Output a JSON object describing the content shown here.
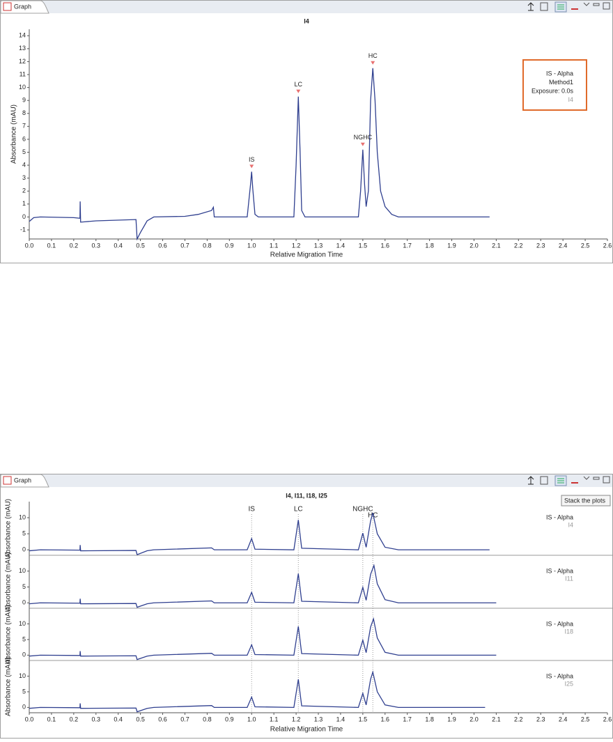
{
  "tabs": [
    {
      "label": "Graph"
    },
    {
      "label": "Graph"
    }
  ],
  "tooltip": "Stack the plots",
  "chart_data": [
    {
      "type": "line",
      "title": "I4",
      "xlabel": "Relative Migration Time",
      "ylabel": "Absorbance (mAU)",
      "xlim": [
        0,
        2.6
      ],
      "ylim": [
        -1.7,
        14.5
      ],
      "xticks": [
        {
          "value": 0,
          "label": "0.0"
        },
        0.1,
        0.2,
        0.3,
        0.4,
        0.5,
        0.6,
        0.7,
        0.8,
        0.9,
        {
          "value": 1,
          "label": "1.0"
        },
        1.1,
        1.2,
        1.3,
        1.4,
        1.5,
        1.6,
        1.7,
        1.8,
        1.9,
        {
          "value": 2,
          "label": "2.0"
        },
        2.1,
        2.2,
        2.3,
        2.4,
        2.5,
        2.6
      ],
      "yticks": [
        -1,
        0,
        1,
        2,
        3,
        4,
        5,
        6,
        7,
        8,
        9,
        10,
        11,
        12,
        13,
        14
      ],
      "legend_lines": [
        "IS - Alpha",
        "Method1",
        "Exposure: 0.0s"
      ],
      "annotations": [
        {
          "text": "IS",
          "x": 1.0,
          "y": 3.5
        },
        {
          "text": "LC",
          "x": 1.21,
          "y": 9.3
        },
        {
          "text": "NGHC",
          "x": 1.5,
          "y": 5.2
        },
        {
          "text": "HC",
          "x": 1.545,
          "y": 11.5
        }
      ],
      "series": [
        {
          "name": "I4",
          "color": "#2f3f8f",
          "x": [
            0.0,
            0.02,
            0.05,
            0.2,
            0.228,
            0.229,
            0.231,
            0.3,
            0.48,
            0.485,
            0.5,
            0.53,
            0.56,
            0.7,
            0.76,
            0.82,
            0.828,
            0.832,
            0.98,
            0.995,
            1.0,
            1.005,
            1.015,
            1.03,
            1.19,
            1.2,
            1.21,
            1.218,
            1.225,
            1.24,
            1.48,
            1.49,
            1.5,
            1.508,
            1.515,
            1.525,
            1.535,
            1.545,
            1.555,
            1.565,
            1.58,
            1.6,
            1.63,
            1.66,
            2.07
          ],
          "values": [
            -0.35,
            -0.05,
            0,
            -0.05,
            -0.1,
            1.2,
            -0.4,
            -0.3,
            -0.2,
            -1.7,
            -1.2,
            -0.3,
            0,
            0.05,
            0.2,
            0.5,
            0.75,
            0,
            0,
            2.5,
            3.5,
            2.2,
            0.2,
            0,
            0,
            4,
            9.3,
            5,
            0.5,
            0,
            0,
            2,
            5.2,
            2.5,
            0.8,
            2,
            9,
            11.5,
            9,
            5,
            2,
            0.8,
            0.2,
            0,
            0
          ]
        }
      ]
    },
    {
      "type": "line",
      "ylabel": "Absorbance (mAU)",
      "ylim": [
        -1.7,
        15
      ],
      "yticks": [
        0,
        5,
        10
      ],
      "legend_lines": [
        "IS - Alpha"
      ],
      "series": [
        {
          "name": "I4",
          "color": "#2f3f8f",
          "x": [
            0.0,
            0.05,
            0.228,
            0.229,
            0.231,
            0.48,
            0.485,
            0.53,
            0.56,
            0.82,
            0.832,
            0.98,
            1.0,
            1.015,
            1.19,
            1.21,
            1.225,
            1.48,
            1.5,
            1.515,
            1.535,
            1.545,
            1.565,
            1.6,
            1.66,
            2.07
          ],
          "values": [
            -0.3,
            0,
            -0.1,
            1.5,
            -0.3,
            -0.2,
            -1.5,
            -0.3,
            0,
            0.6,
            0,
            0,
            3.5,
            0.2,
            0,
            9.3,
            0.5,
            0,
            5.2,
            0.8,
            9,
            11.5,
            5,
            0.8,
            0,
            0
          ]
        }
      ]
    },
    {
      "type": "line",
      "ylabel": "Absorbance (mAU)",
      "ylim": [
        -1.7,
        15
      ],
      "yticks": [
        0,
        5,
        10
      ],
      "legend_lines": [
        "IS - Alpha"
      ],
      "series": [
        {
          "name": "I11",
          "color": "#2f3f8f",
          "x": [
            0.0,
            0.05,
            0.228,
            0.229,
            0.231,
            0.48,
            0.485,
            0.53,
            0.56,
            0.82,
            0.832,
            0.98,
            1.0,
            1.015,
            1.19,
            1.21,
            1.225,
            1.48,
            1.5,
            1.515,
            1.535,
            1.55,
            1.565,
            1.6,
            1.66,
            2.1
          ],
          "values": [
            -0.3,
            0,
            -0.1,
            1.3,
            -0.3,
            -0.2,
            -1.4,
            -0.3,
            0,
            0.6,
            0,
            0,
            3.3,
            0.2,
            0,
            9.2,
            0.5,
            0,
            4.9,
            0.8,
            9,
            11.8,
            6,
            1,
            0,
            0
          ]
        }
      ]
    },
    {
      "type": "line",
      "ylabel": "Absorbance (mAU)",
      "ylim": [
        -1.7,
        15
      ],
      "yticks": [
        0,
        5,
        10
      ],
      "legend_lines": [
        "IS - Alpha"
      ],
      "series": [
        {
          "name": "I18",
          "color": "#2f3f8f",
          "x": [
            0.0,
            0.05,
            0.228,
            0.229,
            0.231,
            0.48,
            0.485,
            0.53,
            0.56,
            0.82,
            0.832,
            0.98,
            1.0,
            1.015,
            1.19,
            1.21,
            1.225,
            1.48,
            1.5,
            1.515,
            1.535,
            1.548,
            1.565,
            1.6,
            1.66,
            2.1
          ],
          "values": [
            -0.3,
            0,
            -0.1,
            1.3,
            -0.3,
            -0.2,
            -1.4,
            -0.3,
            0,
            0.6,
            0,
            0,
            3.3,
            0.2,
            0,
            9.2,
            0.5,
            0,
            4.8,
            0.8,
            9,
            11.6,
            5.5,
            0.9,
            0,
            0
          ]
        }
      ]
    },
    {
      "type": "line",
      "ylabel": "Absorbance (mAU)",
      "ylim": [
        -1.7,
        15
      ],
      "yticks": [
        0,
        5,
        10
      ],
      "legend_lines": [
        "IS - Alpha"
      ],
      "series": [
        {
          "name": "I25",
          "color": "#2f3f8f",
          "x": [
            0.0,
            0.05,
            0.228,
            0.229,
            0.231,
            0.48,
            0.485,
            0.53,
            0.56,
            0.82,
            0.832,
            0.98,
            1.0,
            1.015,
            1.19,
            1.21,
            1.225,
            1.48,
            1.5,
            1.515,
            1.535,
            1.545,
            1.565,
            1.6,
            1.66,
            2.05
          ],
          "values": [
            -0.3,
            0,
            -0.1,
            1.3,
            -0.3,
            -0.2,
            -1.4,
            -0.3,
            0,
            0.6,
            0,
            0,
            3.3,
            0.2,
            0,
            9,
            0.5,
            0,
            4.5,
            0.8,
            9,
            11.3,
            5,
            0.8,
            0,
            0
          ]
        }
      ]
    }
  ],
  "stack": {
    "title": "I4, I11, I18, I25",
    "xlabel": "Relative Migration Time",
    "xlim": [
      0,
      2.6
    ],
    "xticks": [
      {
        "value": 0,
        "label": "0.0"
      },
      0.1,
      0.2,
      0.3,
      0.4,
      0.5,
      0.6,
      0.7,
      0.8,
      0.9,
      {
        "value": 1,
        "label": "1.0"
      },
      1.1,
      1.2,
      1.3,
      1.4,
      1.5,
      1.6,
      1.7,
      1.8,
      1.9,
      {
        "value": 2,
        "label": "2.0"
      },
      2.1,
      2.2,
      2.3,
      2.4,
      2.5,
      2.6
    ],
    "annotations": [
      {
        "text": "IS",
        "x": 1.0
      },
      {
        "text": "LC",
        "x": 1.21
      },
      {
        "text": "NGHC",
        "x": 1.5
      },
      {
        "text": "HC",
        "x": 1.545
      }
    ]
  }
}
